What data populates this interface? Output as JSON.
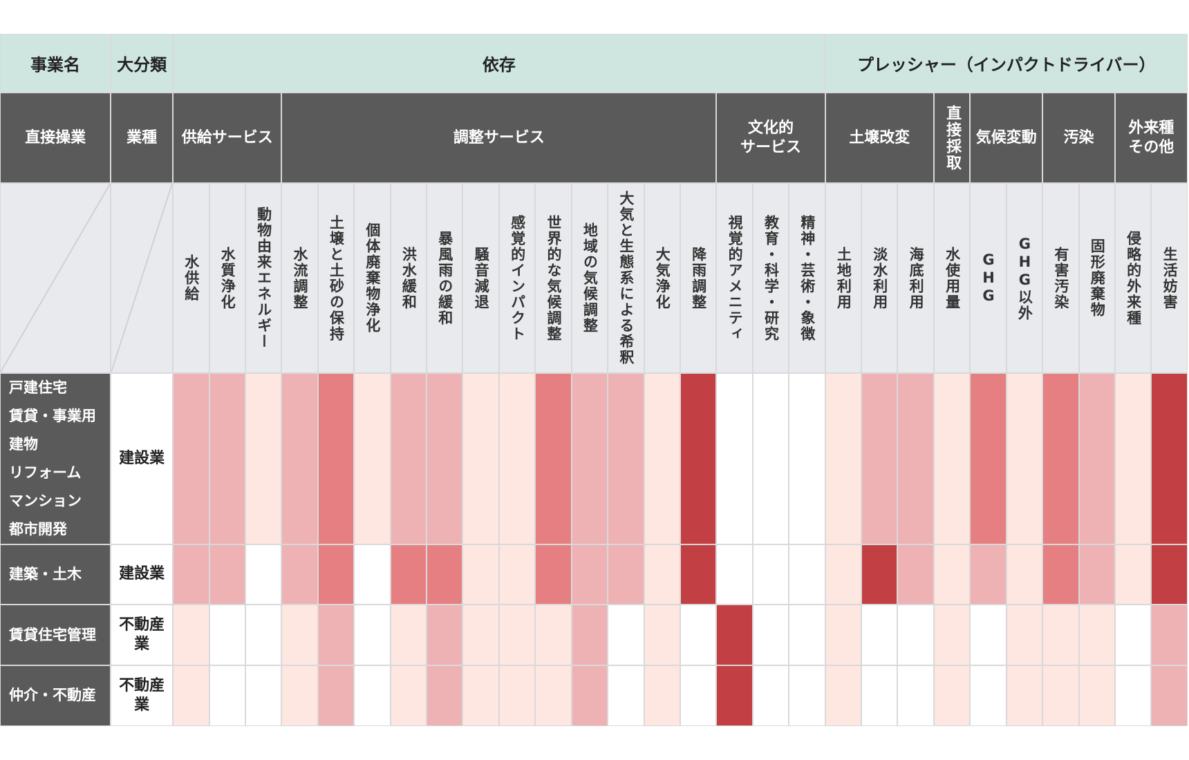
{
  "header": {
    "business": "事業名",
    "category": "大分類",
    "direct": "直接操業",
    "industry": "業種"
  },
  "groups": [
    {
      "label": "依存",
      "subgroups": [
        {
          "label": [
            "供給サービス"
          ],
          "items": [
            "水供給",
            "水質浄化",
            "動物由来エネルギー"
          ]
        },
        {
          "label": [
            "調整サービス"
          ],
          "items": [
            "水流調整",
            "土壌と土砂の保持",
            "個体廃棄物浄化",
            "洪水緩和",
            "暴風雨の緩和",
            "騒音減退",
            "感覚的インパクト",
            "世界的な気候調整",
            "地域の気候調整",
            "大気と生態系による希釈",
            "大気浄化",
            "降雨調整"
          ]
        },
        {
          "label": [
            "文化的",
            "サービス"
          ],
          "items": [
            "視覚的アメニティ",
            "教育・科学・研究",
            "精神・芸術・象徴"
          ]
        }
      ]
    },
    {
      "label": "プレッシャー（インパクトドライバー）",
      "subgroups": [
        {
          "label": [
            "土壌改変"
          ],
          "items": [
            "土地利用",
            "淡水利用",
            "海底利用"
          ]
        },
        {
          "label": [
            "直接採取"
          ],
          "items": [
            "水使用量"
          ]
        },
        {
          "label": [
            "気候変動"
          ],
          "items": [
            "GHG",
            "GHG以外"
          ]
        },
        {
          "label": [
            "汚染"
          ],
          "items": [
            "有害汚染",
            "固形廃棄物"
          ]
        },
        {
          "label": [
            "外来種",
            "その他"
          ],
          "items": [
            "侵略的外来種",
            "生活妨害"
          ]
        }
      ]
    }
  ],
  "level_colors": [
    "#ffffff",
    "#fde7e0",
    "#eeb2b4",
    "#e67f81",
    "#c23f43"
  ],
  "rows": [
    {
      "names": [
        "戸建住宅",
        "賃貸・事業用",
        "建物",
        "リフォーム",
        "マンション",
        "都市開発"
      ],
      "category": "建設業",
      "levels": [
        2,
        2,
        1,
        2,
        3,
        1,
        2,
        2,
        1,
        1,
        3,
        2,
        2,
        1,
        4,
        0,
        0,
        0,
        1,
        2,
        2,
        1,
        3,
        1,
        3,
        2,
        1,
        4
      ]
    },
    {
      "names": [
        "建築・土木"
      ],
      "category": "建設業",
      "levels": [
        2,
        2,
        0,
        2,
        3,
        0,
        3,
        3,
        1,
        1,
        3,
        2,
        2,
        1,
        4,
        0,
        0,
        0,
        1,
        4,
        2,
        1,
        2,
        1,
        3,
        2,
        1,
        4
      ]
    },
    {
      "names": [
        "賃貸住宅管理"
      ],
      "category": "不動産業",
      "levels": [
        1,
        0,
        0,
        1,
        2,
        0,
        1,
        2,
        1,
        1,
        1,
        2,
        0,
        1,
        0,
        4,
        0,
        0,
        1,
        0,
        0,
        1,
        0,
        1,
        1,
        1,
        0,
        2
      ]
    },
    {
      "names": [
        "仲介・不動産"
      ],
      "category": "不動産業",
      "levels": [
        1,
        0,
        0,
        1,
        2,
        0,
        1,
        2,
        1,
        1,
        1,
        2,
        0,
        1,
        0,
        4,
        0,
        0,
        1,
        0,
        0,
        1,
        0,
        1,
        1,
        1,
        0,
        2
      ]
    }
  ]
}
